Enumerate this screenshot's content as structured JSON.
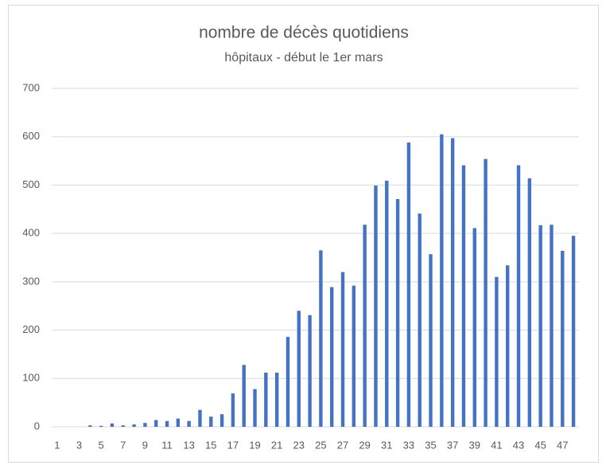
{
  "chart_data": {
    "type": "bar",
    "title": "nombre de décès quotidiens",
    "subtitle": "hôpitaux - début le 1er mars",
    "categories": [
      1,
      null,
      3,
      null,
      5,
      null,
      7,
      null,
      9,
      null,
      11,
      null,
      13,
      null,
      15,
      null,
      17,
      null,
      19,
      null,
      21,
      null,
      23,
      null,
      25,
      null,
      27,
      null,
      29,
      null,
      31,
      null,
      33,
      null,
      35,
      null,
      37,
      null,
      39,
      null,
      41,
      null,
      43,
      null,
      45,
      null,
      47,
      null
    ],
    "values": [
      0,
      0,
      0,
      3,
      2,
      7,
      3,
      5,
      8,
      14,
      12,
      17,
      12,
      35,
      21,
      26,
      69,
      128,
      78,
      112,
      112,
      186,
      240,
      231,
      365,
      289,
      320,
      292,
      418,
      499,
      509,
      471,
      588,
      441,
      357,
      605,
      597,
      541,
      411,
      554,
      310,
      334,
      541,
      514,
      417,
      418,
      364,
      395
    ],
    "color": "#4472c4",
    "ylim": [
      0,
      700
    ],
    "yticks": [
      0,
      100,
      200,
      300,
      400,
      500,
      600,
      700
    ],
    "grid": true
  }
}
